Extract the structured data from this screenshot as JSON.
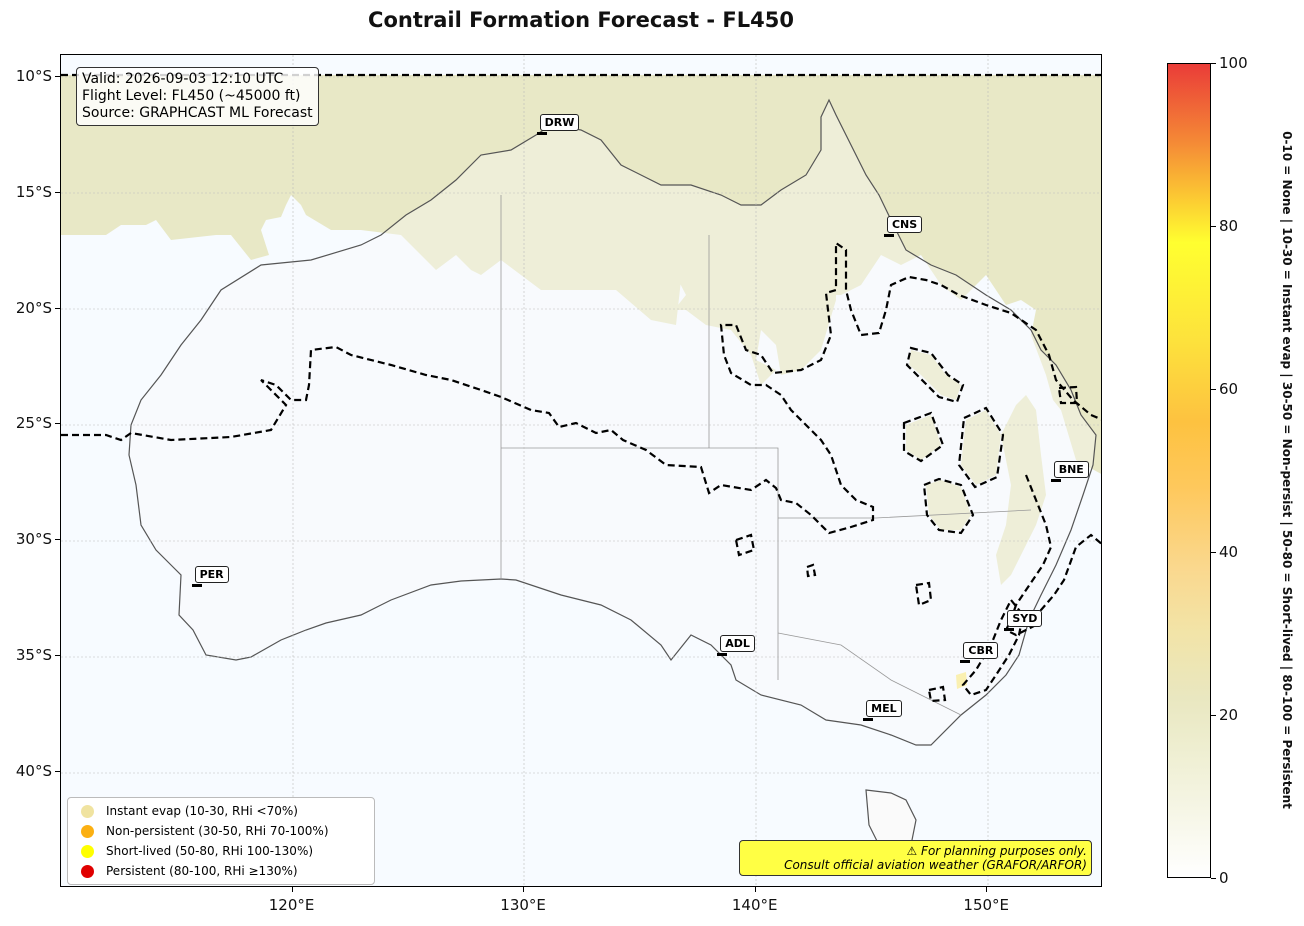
{
  "title": "Contrail Formation Forecast - FL450",
  "info": {
    "valid": "Valid: 2026-09-03 12:10 UTC",
    "flight_level": "Flight Level: FL450 (~45000 ft)",
    "source": "Source: GRAPHCAST ML Forecast"
  },
  "map": {
    "region": "Australia",
    "lon_range": [
      110,
      155
    ],
    "lat_range": [
      -45,
      -9
    ],
    "lat_ticks": [
      {
        "value": -10,
        "label": "10°S"
      },
      {
        "value": -15,
        "label": "15°S"
      },
      {
        "value": -20,
        "label": "20°S"
      },
      {
        "value": -25,
        "label": "25°S"
      },
      {
        "value": -30,
        "label": "30°S"
      },
      {
        "value": -35,
        "label": "35°S"
      },
      {
        "value": -40,
        "label": "40°S"
      }
    ],
    "lon_ticks": [
      {
        "value": 120,
        "label": "120°E"
      },
      {
        "value": 130,
        "label": "130°E"
      },
      {
        "value": 140,
        "label": "140°E"
      },
      {
        "value": 150,
        "label": "150°E"
      }
    ],
    "gridlines": true,
    "contour_style": "dashed-black",
    "fill_colors": {
      "ocean": "#f7fbff",
      "instant_evap": "#e6e5c0",
      "land": "#fafafa"
    }
  },
  "stations": [
    {
      "code": "DRW",
      "lon": 130.8,
      "lat": -12.5
    },
    {
      "code": "CNS",
      "lon": 145.8,
      "lat": -16.9
    },
    {
      "code": "BNE",
      "lon": 153.0,
      "lat": -27.5
    },
    {
      "code": "PER",
      "lon": 115.9,
      "lat": -32.0
    },
    {
      "code": "SYD",
      "lon": 151.0,
      "lat": -33.9
    },
    {
      "code": "ADL",
      "lon": 138.6,
      "lat": -35.0
    },
    {
      "code": "CBR",
      "lon": 149.1,
      "lat": -35.3
    },
    {
      "code": "MEL",
      "lon": 144.9,
      "lat": -37.8
    }
  ],
  "legend": {
    "items": [
      {
        "label": "Instant evap (10-30, RHi <70%)",
        "color": "#f0e3a0"
      },
      {
        "label": "Non-persistent (30-50, RHi 70-100%)",
        "color": "#fbb012"
      },
      {
        "label": "Short-lived (50-80, RHi 100-130%)",
        "color": "#ffff00"
      },
      {
        "label": "Persistent (80-100, RHi ≥130%)",
        "color": "#e00000"
      }
    ]
  },
  "disclaimer": {
    "line1": "⚠ For planning purposes only.",
    "line2": "Consult official aviation weather (GRAFOR/ARFOR)"
  },
  "colorbar": {
    "min": 0,
    "max": 100,
    "ticks": [
      0,
      20,
      40,
      60,
      80,
      100
    ],
    "label": "0-10 = None  |  10-30 = Instant evap  |  30-50 = Non-persist  |  50-80 = Short-lived  |  80-100 = Persistent"
  }
}
